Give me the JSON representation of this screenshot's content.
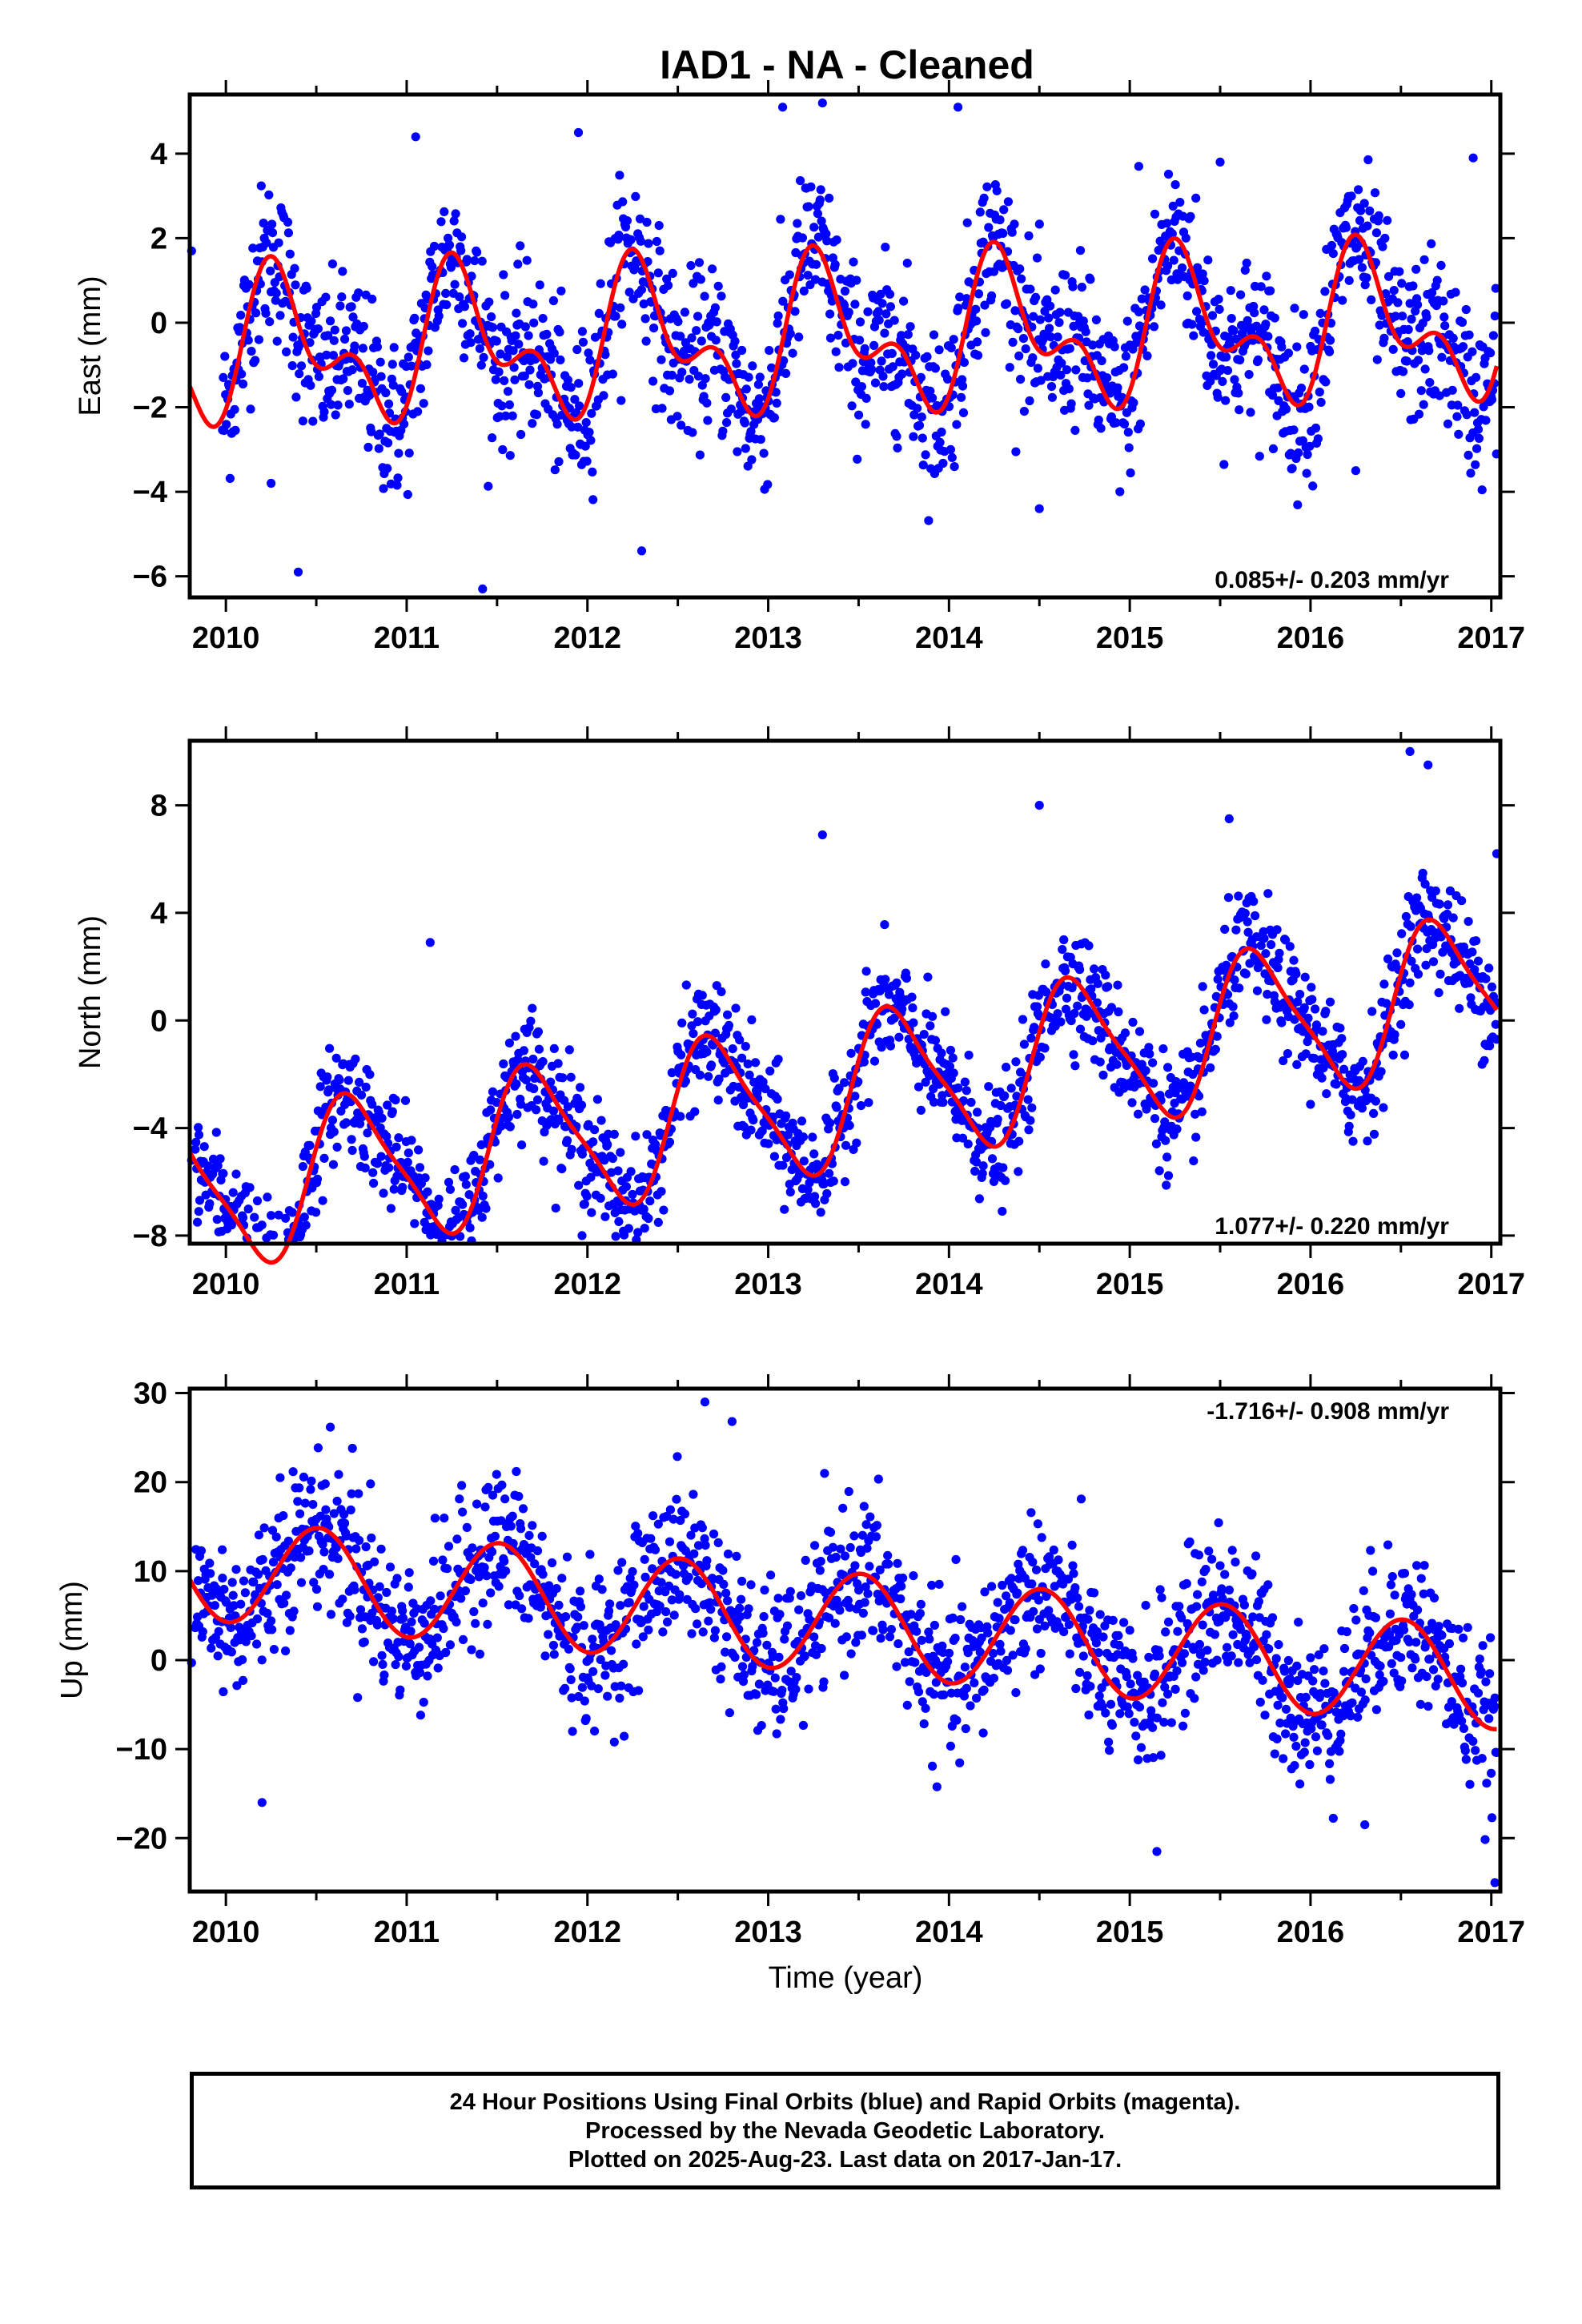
{
  "title": "IAD1  - NA - Cleaned",
  "xlabel": "Time (year)",
  "footer": {
    "line1": "24 Hour Positions Using Final Orbits (blue) and Rapid Orbits (magenta).",
    "line2": "Processed by the Nevada Geodetic Laboratory.",
    "line3": "Plotted on 2025-Aug-23. Last data on 2017-Jan-17."
  },
  "colors": {
    "points": "#0000ff",
    "fit": "#ff0000",
    "frame": "#000000"
  },
  "chart_data": [
    {
      "type": "scatter",
      "component": "east",
      "ylabel": "East (mm)",
      "rate_text": "0.085+/- 0.203 mm/yr",
      "rate_position": "bottom-right",
      "xlim": [
        2009.8,
        2017.05
      ],
      "ylim": [
        -6.5,
        5.4
      ],
      "xticks": [
        2010,
        2011,
        2012,
        2013,
        2014,
        2015,
        2016,
        2017
      ],
      "yticks": [
        -6,
        -4,
        -2,
        0,
        2,
        4
      ],
      "grid": false,
      "model": {
        "start": 2009.8,
        "end": 2017.03,
        "rate": 0.085,
        "offset": -0.35,
        "annual_sin": 1.3,
        "annual_cos": -0.5,
        "semi_sin": 0.3,
        "semi_cos": -0.9
      },
      "scatter_sigma": 0.95,
      "series": [
        {
          "name": "24 Hour Positions (Final Orbits)",
          "color": "#0000ff",
          "points": [
            [
              2009.81,
              1.7
            ],
            [
              2010.25,
              -3.8
            ],
            [
              2010.4,
              -5.9
            ],
            [
              2011.05,
              4.4
            ],
            [
              2011.42,
              -6.3
            ],
            [
              2011.95,
              4.5
            ],
            [
              2012.3,
              -5.4
            ],
            [
              2013.08,
              5.1
            ],
            [
              2013.3,
              5.2
            ],
            [
              2014.05,
              5.1
            ],
            [
              2014.5,
              -4.4
            ],
            [
              2015.05,
              3.7
            ],
            [
              2015.5,
              3.8
            ],
            [
              2016.25,
              -3.5
            ],
            [
              2016.9,
              3.9
            ]
          ]
        }
      ],
      "fit": {
        "name": "model",
        "color": "#ff0000"
      }
    },
    {
      "type": "scatter",
      "component": "north",
      "ylabel": "North (mm)",
      "rate_text": "1.077+/- 0.220 mm/yr",
      "rate_position": "bottom-right",
      "xlim": [
        2009.8,
        2017.05
      ],
      "ylim": [
        -8.3,
        10.4
      ],
      "xticks": [
        2010,
        2011,
        2012,
        2013,
        2014,
        2015,
        2016,
        2017
      ],
      "yticks": [
        -8,
        -4,
        0,
        4,
        8
      ],
      "grid": false,
      "model": {
        "start": 2009.8,
        "end": 2017.03,
        "rate": 1.077,
        "offset": -2.6,
        "annual_sin": -2.6,
        "annual_cos": -0.8,
        "semi_sin": 0.5,
        "semi_cos": 0.3
      },
      "scatter_sigma": 1.05,
      "series": [
        {
          "name": "24 Hour Positions (Final Orbits)",
          "color": "#0000ff",
          "points": [
            [
              2009.81,
              -5.2
            ],
            [
              2009.85,
              -7.1
            ],
            [
              2011.13,
              2.9
            ],
            [
              2011.97,
              -8.0
            ],
            [
              2013.3,
              6.9
            ],
            [
              2014.5,
              8.0
            ],
            [
              2015.55,
              7.5
            ],
            [
              2016.55,
              10.0
            ],
            [
              2016.65,
              9.5
            ],
            [
              2017.03,
              6.2
            ]
          ]
        }
      ],
      "fit": {
        "name": "model",
        "color": "#ff0000"
      }
    },
    {
      "type": "scatter",
      "component": "up",
      "ylabel": "Up (mm)",
      "rate_text": "-1.716+/- 0.908 mm/yr",
      "rate_position": "top-right",
      "xlim": [
        2009.8,
        2017.05
      ],
      "ylim": [
        -26,
        30.5
      ],
      "xticks": [
        2010,
        2011,
        2012,
        2013,
        2014,
        2015,
        2016,
        2017
      ],
      "yticks": [
        -20,
        -10,
        0,
        10,
        20,
        30
      ],
      "grid": false,
      "model": {
        "start": 2009.8,
        "end": 2017.03,
        "rate": -1.716,
        "offset": 4.0,
        "annual_sin": -0.5,
        "annual_cos": -5.7,
        "semi_sin": 0.0,
        "semi_cos": 0.0
      },
      "scatter_sigma": 4.2,
      "series": [
        {
          "name": "24 Hour Positions (Final Orbits)",
          "color": "#0000ff",
          "points": [
            [
              2009.81,
              -0.3
            ],
            [
              2009.98,
              12.4
            ],
            [
              2010.2,
              -16.0
            ],
            [
              2010.3,
              20.5
            ],
            [
              2010.55,
              19.8
            ],
            [
              2010.7,
              23.8
            ],
            [
              2010.8,
              19.8
            ],
            [
              2012.65,
              29.0
            ],
            [
              2012.8,
              26.8
            ],
            [
              2015.15,
              -21.5
            ],
            [
              2016.3,
              -18.5
            ],
            [
              2017.02,
              -25.0
            ]
          ]
        }
      ],
      "fit": {
        "name": "model",
        "color": "#ff0000"
      }
    }
  ]
}
